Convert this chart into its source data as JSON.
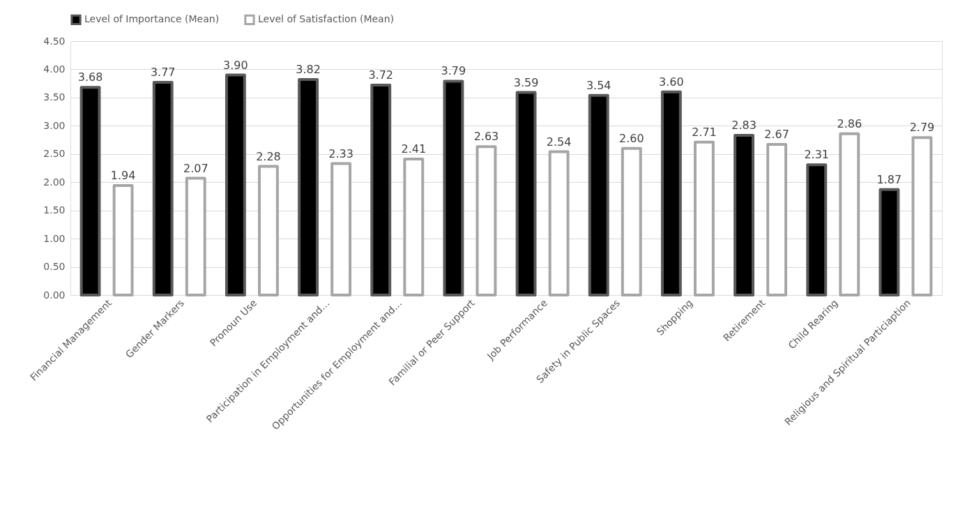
{
  "chart_data": {
    "type": "bar",
    "categories": [
      "Financial Management",
      "Gender Markers",
      "Pronoun Use",
      "Participation in Employment and…",
      "Opportunities for Employment and…",
      "Familial or Peer Support",
      "Job Performance",
      "Safety in Public Spaces",
      "Shopping",
      "Retirement",
      "Child Rearing",
      "Religious and Spiritual Particiaption"
    ],
    "series": [
      {
        "name": "Level of Importance (Mean)",
        "color": "#000000",
        "values": [
          3.68,
          3.77,
          3.9,
          3.82,
          3.72,
          3.79,
          3.59,
          3.54,
          3.6,
          2.83,
          2.31,
          1.87
        ],
        "value_labels": [
          "3.68",
          "3.77",
          "3.90",
          "3.82",
          "3.72",
          "3.79",
          "3.59",
          "3.54",
          "3.60",
          "2.83",
          "2.31",
          "1.87"
        ]
      },
      {
        "name": "Level of Satisfaction (Mean)",
        "color": "#ffffff",
        "values": [
          1.94,
          2.07,
          2.28,
          2.33,
          2.41,
          2.63,
          2.54,
          2.6,
          2.71,
          2.67,
          2.86,
          2.79
        ],
        "value_labels": [
          "1.94",
          "2.07",
          "2.28",
          "2.33",
          "2.41",
          "2.63",
          "2.54",
          "2.60",
          "2.71",
          "2.67",
          "2.86",
          "2.79"
        ]
      }
    ],
    "ylim": [
      0,
      4.5
    ],
    "yticks": [
      {
        "value": 0,
        "label": "0.00"
      },
      {
        "value": 0.5,
        "label": "0.50"
      },
      {
        "value": 1,
        "label": "1.00"
      },
      {
        "value": 1.5,
        "label": "1.50"
      },
      {
        "value": 2,
        "label": "2.00"
      },
      {
        "value": 2.5,
        "label": "2.50"
      },
      {
        "value": 3,
        "label": "3.00"
      },
      {
        "value": 3.5,
        "label": "3.50"
      },
      {
        "value": 4,
        "label": "4.00"
      },
      {
        "value": 4.5,
        "label": "4.50"
      }
    ],
    "grid": "y",
    "legend": "top"
  }
}
